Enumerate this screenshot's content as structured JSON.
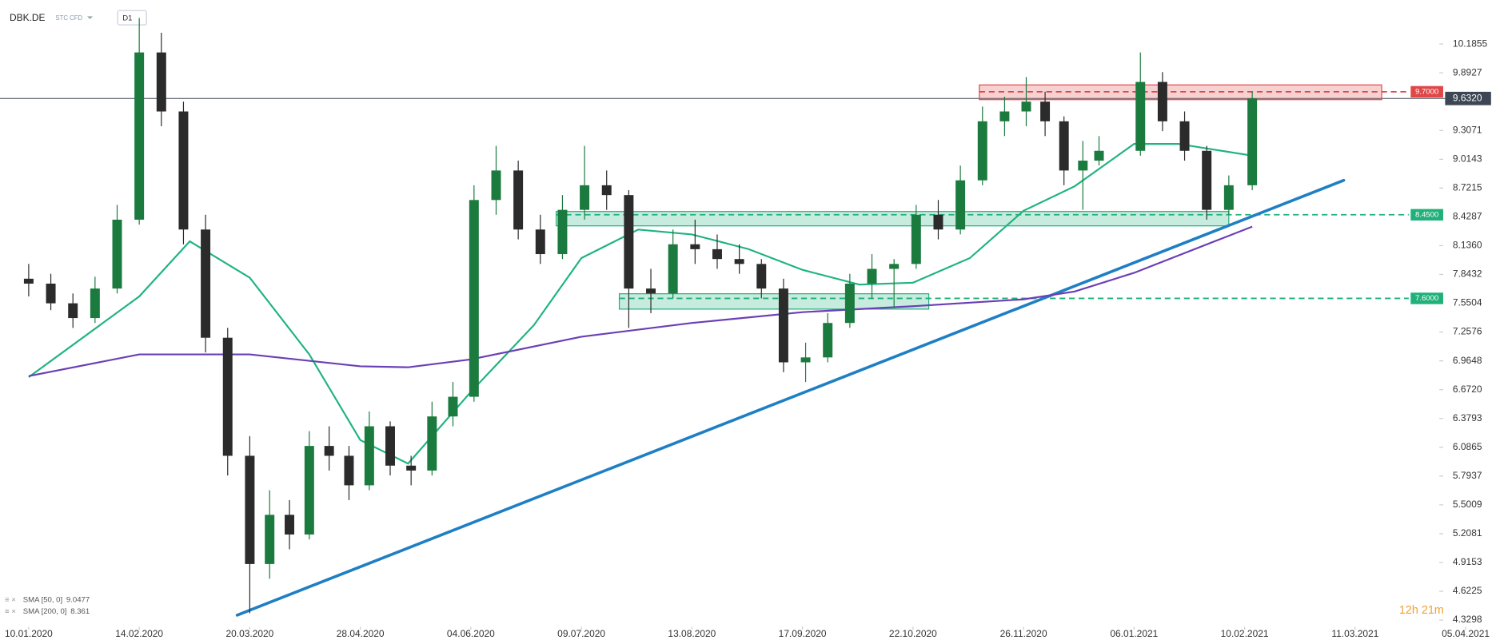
{
  "chart_data": {
    "type": "candlestick",
    "title": "DBK.DE",
    "subtitle": "STC CFD",
    "timeframe": "D1",
    "countdown": "12h 21m",
    "up_color": "#1b7a3e",
    "down_color": "#2b2b2b",
    "x": [
      "10.01.2020",
      "17.01.2020",
      "24.01.2020",
      "31.01.2020",
      "07.02.2020",
      "14.02.2020",
      "21.02.2020",
      "28.02.2020",
      "06.03.2020",
      "13.03.2020",
      "20.03.2020",
      "27.03.2020",
      "03.04.2020",
      "10.04.2020",
      "17.04.2020",
      "24.04.2020",
      "01.05.2020",
      "08.05.2020",
      "15.05.2020",
      "22.05.2020",
      "29.05.2020",
      "05.06.2020",
      "12.06.2020",
      "19.06.2020",
      "26.06.2020",
      "03.07.2020",
      "10.07.2020",
      "17.07.2020",
      "24.07.2020",
      "31.07.2020",
      "07.08.2020",
      "14.08.2020",
      "21.08.2020",
      "28.08.2020",
      "04.09.2020",
      "11.09.2020",
      "18.09.2020",
      "25.09.2020",
      "02.10.2020",
      "09.10.2020",
      "16.10.2020",
      "23.10.2020",
      "30.10.2020",
      "06.11.2020",
      "13.11.2020",
      "20.11.2020",
      "27.11.2020",
      "04.12.2020",
      "11.12.2020",
      "18.12.2020",
      "24.12.2020",
      "08.01.2021",
      "15.01.2021",
      "22.01.2021",
      "29.01.2021",
      "05.02.2021",
      "12.02.2021"
    ],
    "open": [
      7.8,
      7.75,
      7.55,
      7.4,
      7.7,
      8.4,
      10.1,
      9.5,
      8.3,
      7.2,
      6.0,
      4.9,
      5.4,
      5.2,
      6.1,
      6.0,
      5.7,
      6.3,
      5.9,
      5.85,
      6.4,
      6.6,
      8.6,
      8.9,
      8.3,
      8.05,
      8.5,
      8.75,
      8.65,
      7.7,
      7.65,
      8.15,
      8.1,
      8.0,
      7.95,
      7.7,
      6.95,
      7.0,
      7.35,
      7.75,
      7.9,
      7.95,
      8.45,
      8.3,
      8.8,
      9.4,
      9.5,
      9.6,
      9.4,
      8.9,
      9.0,
      9.1,
      9.8,
      9.4,
      9.1,
      8.5,
      8.75
    ],
    "high": [
      7.95,
      7.85,
      7.65,
      7.82,
      8.55,
      10.45,
      10.3,
      9.6,
      8.45,
      7.3,
      6.2,
      5.65,
      5.55,
      6.25,
      6.3,
      6.1,
      6.45,
      6.35,
      6.0,
      6.55,
      6.75,
      8.75,
      9.15,
      9.0,
      8.45,
      8.65,
      9.15,
      8.9,
      8.7,
      7.9,
      8.3,
      8.4,
      8.25,
      8.15,
      8.0,
      7.8,
      7.15,
      7.45,
      7.85,
      8.05,
      8.0,
      8.55,
      8.6,
      8.95,
      9.55,
      9.65,
      9.85,
      9.7,
      9.45,
      9.2,
      9.25,
      10.1,
      9.9,
      9.5,
      9.15,
      8.85,
      9.7
    ],
    "low": [
      7.62,
      7.48,
      7.3,
      7.35,
      7.65,
      8.35,
      9.35,
      8.15,
      7.05,
      5.8,
      4.4,
      4.75,
      5.05,
      5.15,
      5.85,
      5.55,
      5.65,
      5.8,
      5.7,
      5.8,
      6.3,
      6.55,
      8.45,
      8.2,
      7.95,
      8.0,
      8.4,
      8.5,
      7.3,
      7.45,
      7.6,
      7.95,
      7.9,
      7.85,
      7.6,
      6.85,
      6.75,
      6.95,
      7.3,
      7.6,
      7.5,
      7.9,
      8.2,
      8.25,
      8.75,
      9.25,
      9.35,
      9.25,
      8.75,
      8.5,
      8.95,
      9.05,
      9.3,
      9.0,
      8.4,
      8.45,
      8.7
    ],
    "close": [
      7.75,
      7.55,
      7.4,
      7.7,
      8.4,
      10.1,
      9.5,
      8.3,
      7.2,
      6.0,
      4.9,
      5.4,
      5.2,
      6.1,
      6.0,
      5.7,
      6.3,
      5.9,
      5.85,
      6.4,
      6.6,
      8.6,
      8.9,
      8.3,
      8.05,
      8.5,
      8.75,
      8.65,
      7.7,
      7.65,
      8.15,
      8.1,
      8.0,
      7.95,
      7.7,
      6.95,
      7.0,
      7.35,
      7.75,
      7.9,
      7.95,
      8.45,
      8.3,
      8.8,
      9.4,
      9.5,
      9.6,
      9.4,
      8.9,
      9.0,
      9.1,
      9.8,
      9.4,
      9.1,
      8.5,
      8.75,
      9.632
    ],
    "series": [
      {
        "name": "SMA [50, 0]",
        "last": 9.0477,
        "color": "#1fb37f",
        "x": [
          "10.01.2020",
          "14.02.2020",
          "01.03.2020",
          "20.03.2020",
          "10.04.2020",
          "28.04.2020",
          "14.05.2020",
          "04.06.2020",
          "24.06.2020",
          "09.07.2020",
          "27.07.2020",
          "13.08.2020",
          "31.08.2020",
          "17.09.2020",
          "05.10.2020",
          "22.10.2020",
          "09.11.2020",
          "26.11.2020",
          "15.12.2020",
          "06.01.2021",
          "20.01.2021",
          "12.02.2021"
        ],
        "values": [
          6.8,
          7.62,
          8.18,
          7.81,
          7.03,
          6.16,
          5.92,
          6.65,
          7.33,
          8.01,
          8.3,
          8.25,
          8.1,
          7.89,
          7.74,
          7.76,
          8.01,
          8.49,
          8.74,
          9.17,
          9.17,
          9.05
        ]
      },
      {
        "name": "SMA [200, 0]",
        "last": 8.361,
        "color": "#6a3fb5",
        "x": [
          "10.01.2020",
          "14.02.2020",
          "20.03.2020",
          "28.04.2020",
          "14.05.2020",
          "04.06.2020",
          "09.07.2020",
          "13.08.2020",
          "17.09.2020",
          "22.10.2020",
          "26.11.2020",
          "15.12.2020",
          "06.01.2021",
          "12.02.2021"
        ],
        "values": [
          6.81,
          7.03,
          7.03,
          6.91,
          6.9,
          6.98,
          7.21,
          7.35,
          7.46,
          7.52,
          7.59,
          7.67,
          7.86,
          8.33
        ]
      }
    ],
    "trendline": {
      "color": "#1f7fc4",
      "x": [
        "16.03.2020",
        "08.03.2021"
      ],
      "values": [
        4.38,
        8.8
      ]
    },
    "zones": [
      {
        "color": "#e04848",
        "x": [
          "12.11.2020",
          "17.03.2021"
        ],
        "values": [
          9.62,
          9.77
        ]
      },
      {
        "color": "#20b07a",
        "x": [
          "01.07.2020",
          "05.02.2021"
        ],
        "values": [
          8.337,
          8.483
        ]
      },
      {
        "color": "#20b07a",
        "x": [
          "21.07.2020",
          "27.10.2020"
        ],
        "values": [
          7.491,
          7.647
        ]
      }
    ],
    "levels": [
      {
        "value": 9.7,
        "label": "9.7000",
        "color": "#e04848",
        "from": "12.11.2020"
      },
      {
        "value": 8.45,
        "label": "8.4500",
        "color": "#20b07a",
        "from": "01.07.2020"
      },
      {
        "value": 7.6,
        "label": "7.6000",
        "color": "#20b07a",
        "from": "21.07.2020"
      }
    ],
    "last_price": {
      "value": 9.632,
      "label": "9.6320",
      "color": "#3c4654"
    },
    "ylim": [
      4.262,
      10.633
    ],
    "yticks": [
      10.1855,
      9.8927,
      9.3071,
      9.0143,
      8.7215,
      8.4287,
      {
        "value": 8.136,
        "label": "8.1360"
      },
      7.8432,
      7.5504,
      7.2576,
      6.9648,
      {
        "value": 6.672,
        "label": "6.6720"
      },
      6.3793,
      6.0865,
      5.7937,
      5.5009,
      5.2081,
      4.9153,
      4.6225,
      4.3298
    ],
    "xticks": [
      "10.01.2020",
      "14.02.2020",
      "20.03.2020",
      "28.04.2020",
      "04.06.2020",
      "09.07.2020",
      "13.08.2020",
      "17.09.2020",
      "22.10.2020",
      "26.11.2020",
      "06.01.2021",
      "10.02.2021",
      "11.03.2021",
      "05.04.2021"
    ]
  }
}
